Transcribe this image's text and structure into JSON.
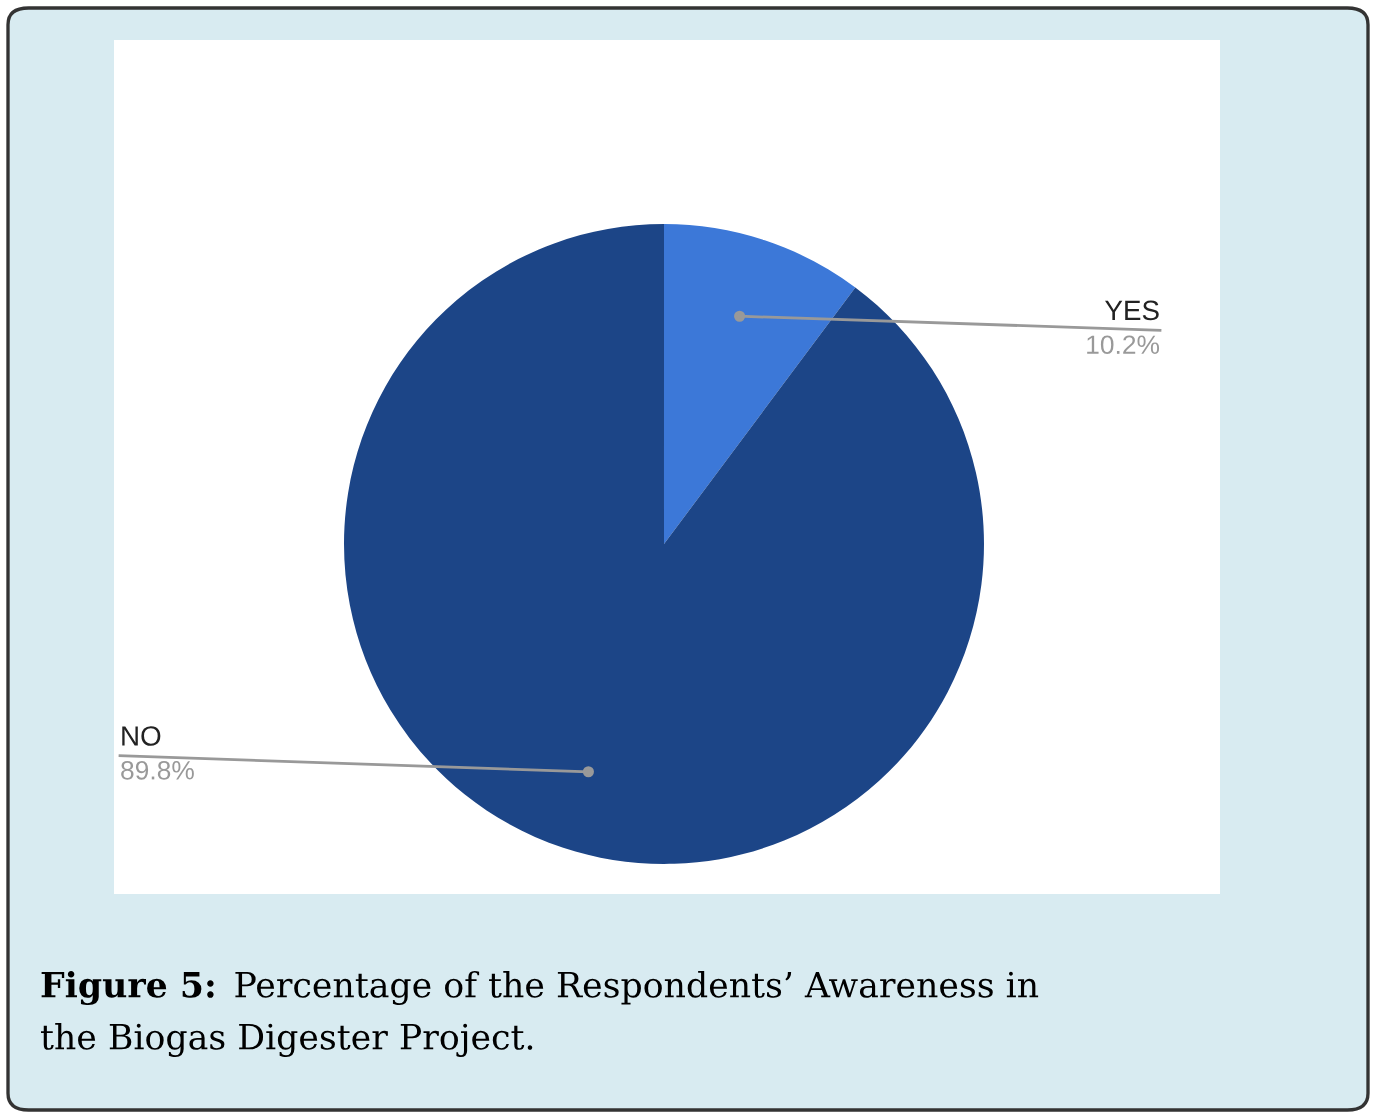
{
  "chart_data": {
    "type": "pie",
    "categories": [
      "YES",
      "NO"
    ],
    "values": [
      10.2,
      89.8
    ],
    "colors": [
      "#3c78d8",
      "#1c4587"
    ],
    "value_labels": [
      "10.2%",
      "89.8%"
    ],
    "annotations": [
      "Figure 5:",
      "Percentage of the Respondents’ Awareness in the Biogas Digester Project."
    ]
  }
}
